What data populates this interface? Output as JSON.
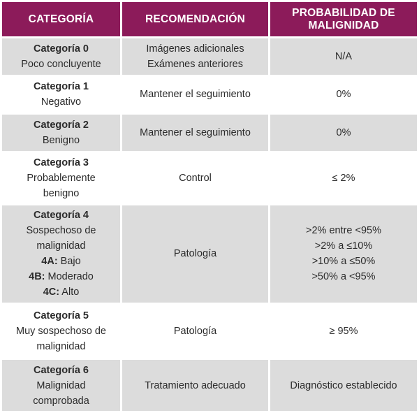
{
  "colors": {
    "header_bg": "#8c1b5a",
    "header_text": "#ffffff",
    "row_alt_bg": "#dcdcdc",
    "row_plain_bg": "#ffffff",
    "body_text": "#2b2b2b"
  },
  "header": {
    "col1": "CATEGORÍA",
    "col2": "RECOMENDACIÓN",
    "col3_line1": "PROBABILIDAD DE",
    "col3_line2": "MALIGNIDAD"
  },
  "rows": [
    {
      "category": "Categoría 0",
      "description": [
        "Poco concluyente"
      ],
      "recommendation": [
        "Imágenes adicionales",
        "Exámenes anteriores"
      ],
      "probability": [
        "N/A"
      ]
    },
    {
      "category": "Categoría 1",
      "description": [
        "Negativo"
      ],
      "recommendation": [
        "Mantener el seguimiento"
      ],
      "probability": [
        "0%"
      ]
    },
    {
      "category": "Categoría 2",
      "description": [
        "Benigno"
      ],
      "recommendation": [
        "Mantener el seguimiento"
      ],
      "probability": [
        "0%"
      ]
    },
    {
      "category": "Categoría 3",
      "description": [
        "Probablemente",
        "benigno"
      ],
      "recommendation": [
        "Control"
      ],
      "probability": [
        "≤ 2%"
      ]
    },
    {
      "category": "Categoría 4",
      "description": [
        "Sospechoso de",
        "malignidad"
      ],
      "subcategories": [
        {
          "code": "4A:",
          "label": " Bajo"
        },
        {
          "code": "4B:",
          "label": " Moderado"
        },
        {
          "code": "4C:",
          "label": " Alto"
        }
      ],
      "recommendation": [
        "Patología"
      ],
      "probability": [
        ">2% entre <95%",
        ">2% a ≤10%",
        ">10% a ≤50%",
        ">50% a <95%"
      ]
    },
    {
      "category": "Categoría 5",
      "description": [
        "Muy sospechoso de",
        "malignidad"
      ],
      "recommendation": [
        "Patología"
      ],
      "probability": [
        "≥ 95%"
      ]
    },
    {
      "category": "Categoría 6",
      "description": [
        "Malignidad",
        "comprobada"
      ],
      "recommendation": [
        "Tratamiento adecuado"
      ],
      "probability": [
        "Diagnóstico establecido"
      ]
    }
  ]
}
